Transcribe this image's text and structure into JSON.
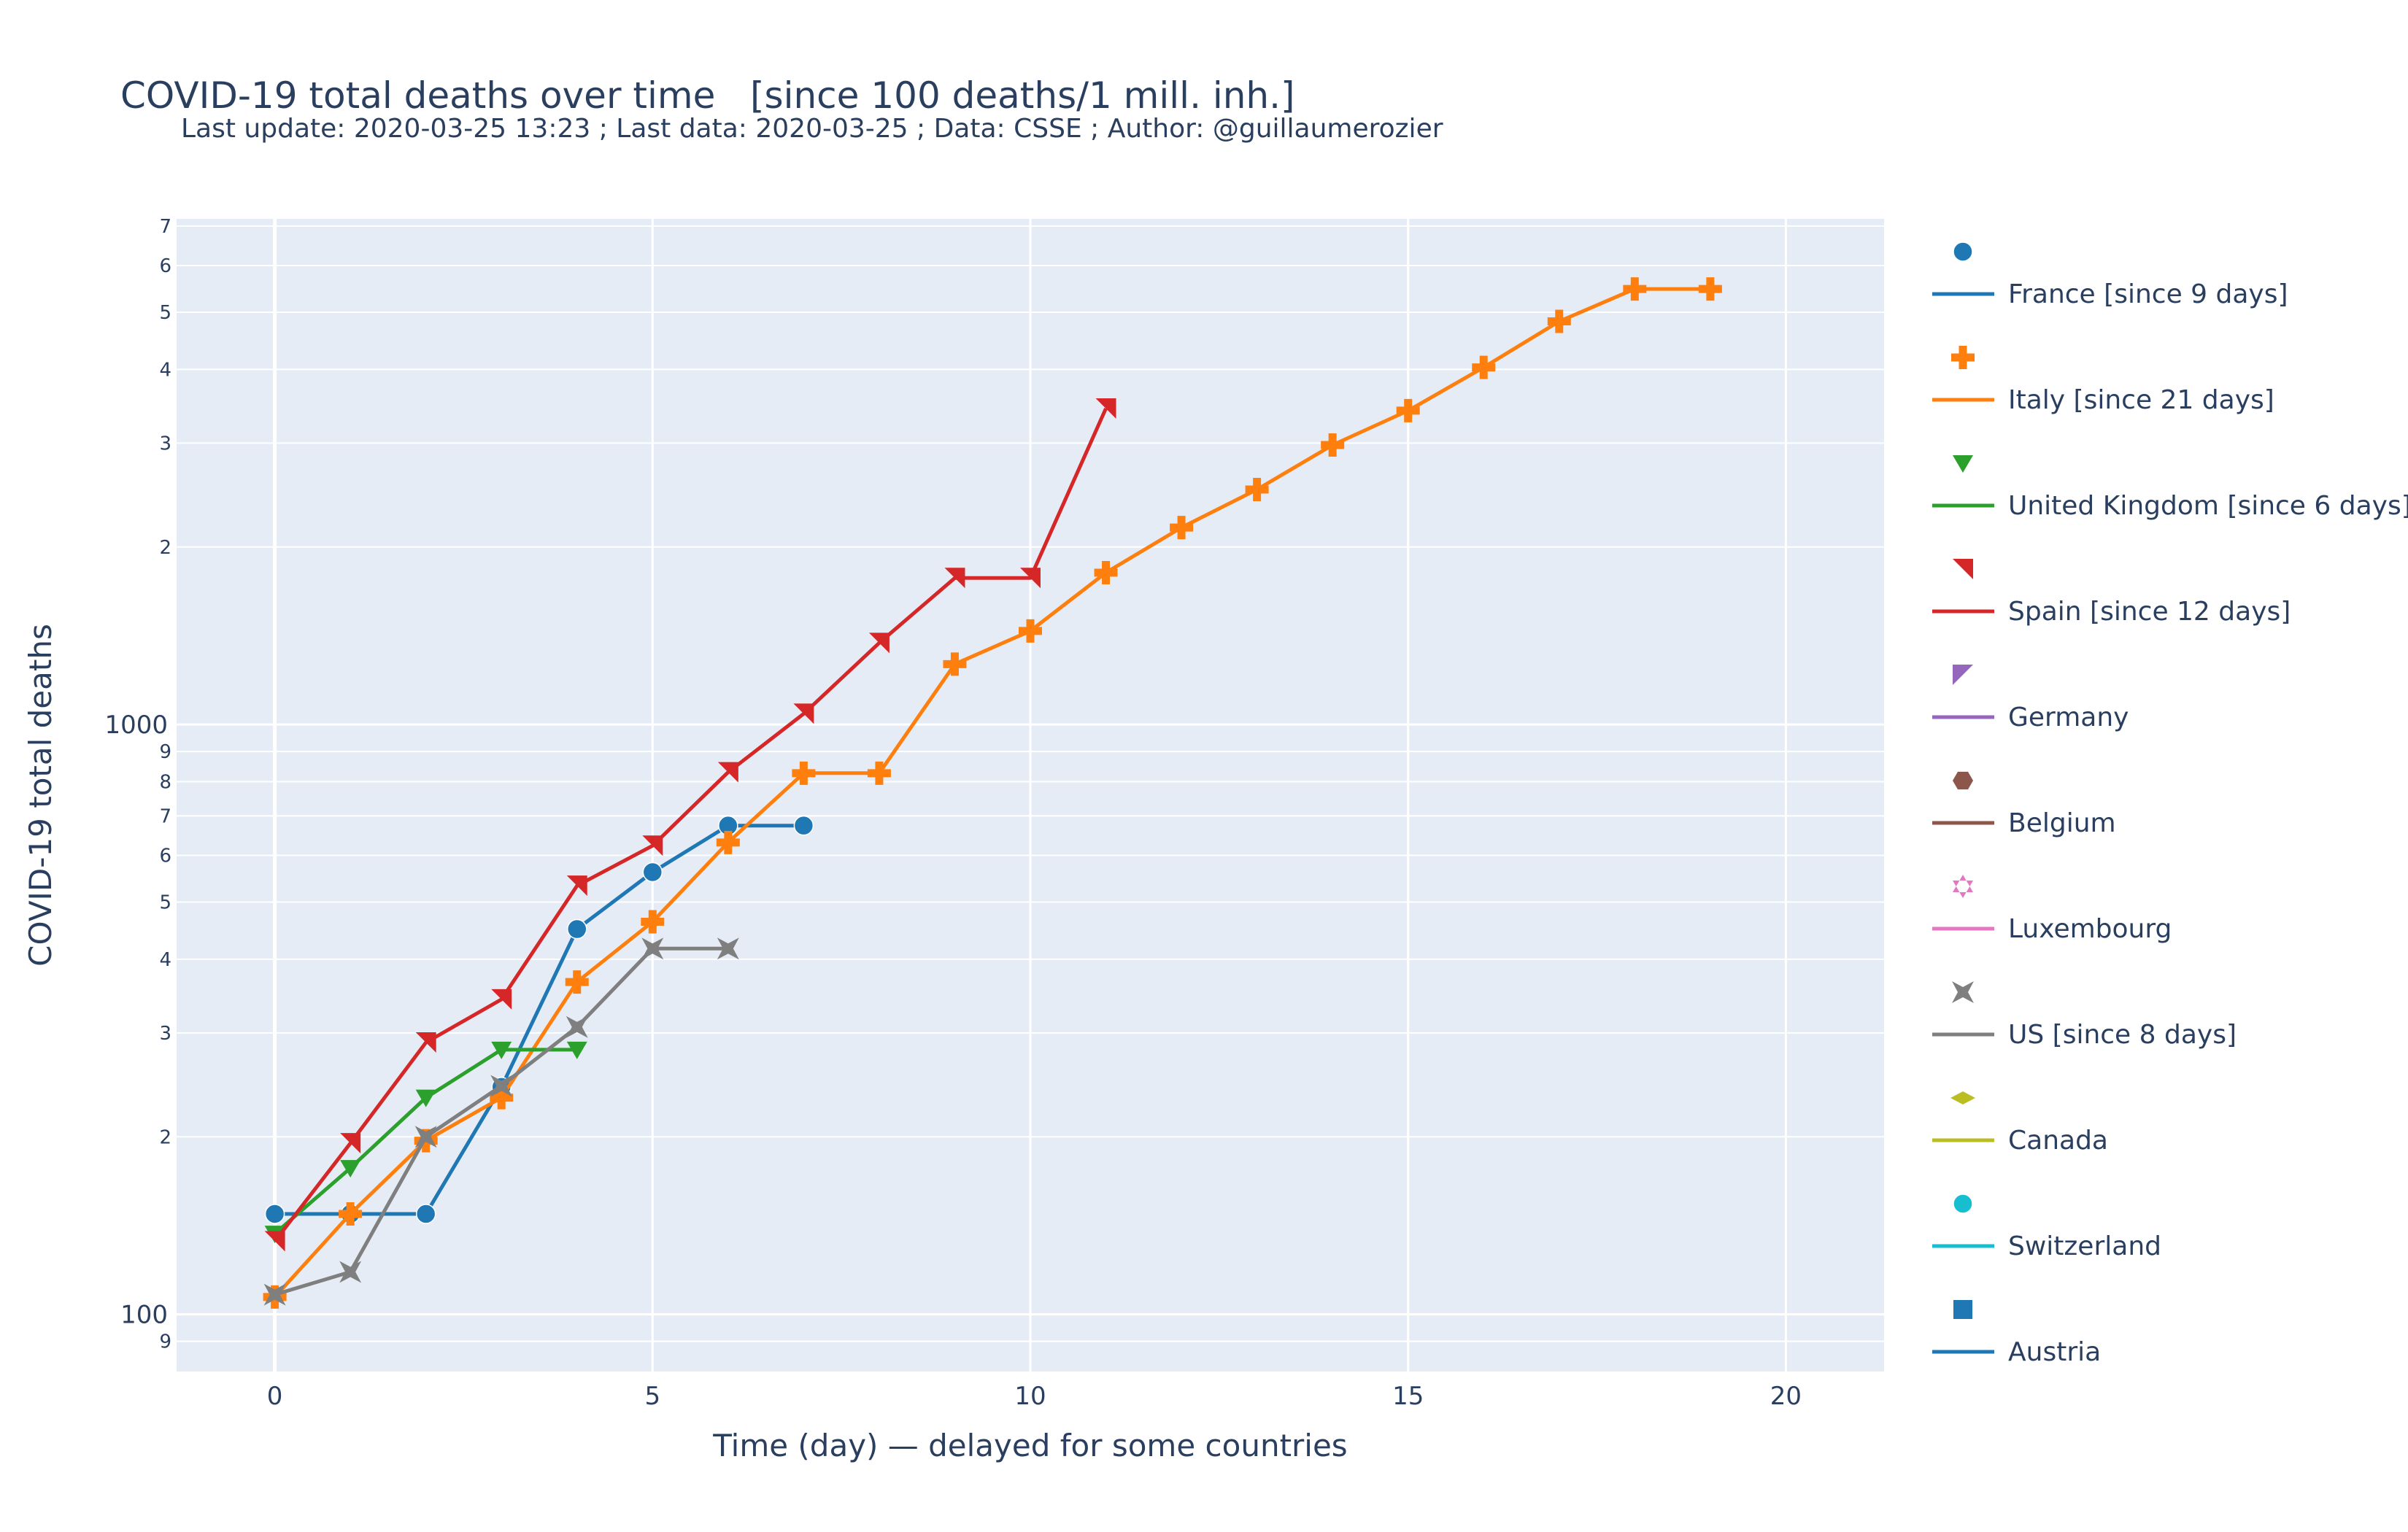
{
  "chart_data": {
    "type": "line",
    "title": "COVID-19 total deaths over time   [since 100 deaths/1 mill. inh.]",
    "subtitle": "Last update: 2020-03-25 13:23 ; Last data: 2020-03-25 ; Data: CSSE ; Author: @guillaumerozier",
    "xlabel": "Time (day) — delayed for some countries",
    "ylabel": "COVID-19 total deaths",
    "y_scale": "log",
    "xlim": [
      -1.3,
      21.3
    ],
    "ylim": [
      80,
      7200
    ],
    "x_ticks": [
      0,
      5,
      10,
      15,
      20
    ],
    "y_major_ticks": [
      {
        "value": 100,
        "label": "100"
      },
      {
        "value": 1000,
        "label": "1000"
      }
    ],
    "y_minor_ticks": [
      {
        "value": 90,
        "label": "9"
      },
      {
        "value": 200,
        "label": "2"
      },
      {
        "value": 300,
        "label": "3"
      },
      {
        "value": 400,
        "label": "4"
      },
      {
        "value": 500,
        "label": "5"
      },
      {
        "value": 600,
        "label": "6"
      },
      {
        "value": 700,
        "label": "7"
      },
      {
        "value": 800,
        "label": "8"
      },
      {
        "value": 900,
        "label": "9"
      },
      {
        "value": 2000,
        "label": "2"
      },
      {
        "value": 3000,
        "label": "3"
      },
      {
        "value": 4000,
        "label": "4"
      },
      {
        "value": 5000,
        "label": "5"
      },
      {
        "value": 6000,
        "label": "6"
      },
      {
        "value": 7000,
        "label": "7"
      }
    ],
    "grid": true,
    "legend_position": "right",
    "series": [
      {
        "name": "France [since 9 days]",
        "color": "#1f77b4",
        "marker": "circle",
        "x": [
          0,
          1,
          2,
          3,
          4,
          5,
          6,
          7
        ],
        "y": [
          148,
          148,
          148,
          243,
          450,
          562,
          674,
          674
        ]
      },
      {
        "name": "Italy [since 21 days]",
        "color": "#ff7f0e",
        "marker": "cross",
        "x": [
          0,
          1,
          2,
          3,
          4,
          5,
          6,
          7,
          8,
          9,
          10,
          11,
          12,
          13,
          14,
          15,
          16,
          17,
          18,
          19
        ],
        "y": [
          107,
          148,
          197,
          233,
          366,
          463,
          631,
          827,
          827,
          1266,
          1441,
          1809,
          2158,
          2503,
          2978,
          3405,
          4032,
          4825,
          5476,
          5476
        ]
      },
      {
        "name": "United Kingdom [since 6 days]",
        "color": "#2ca02c",
        "marker": "triangle-down",
        "x": [
          0,
          1,
          2,
          3,
          4
        ],
        "y": [
          137,
          177,
          233,
          281,
          281
        ]
      },
      {
        "name": "Spain [since 12 days]",
        "color": "#d62728",
        "marker": "triangle-ne",
        "x": [
          0,
          1,
          2,
          3,
          4,
          5,
          6,
          7,
          8,
          9,
          10,
          11
        ],
        "y": [
          133,
          195,
          289,
          342,
          533,
          623,
          830,
          1043,
          1375,
          1772,
          1772,
          3434
        ]
      },
      {
        "name": "Germany",
        "color": "#9467bd",
        "marker": "triangle-sw",
        "x": [],
        "y": []
      },
      {
        "name": "Belgium",
        "color": "#8c564b",
        "marker": "hexagon",
        "x": [],
        "y": []
      },
      {
        "name": "Luxembourg",
        "color": "#e377c2",
        "marker": "star",
        "x": [],
        "y": []
      },
      {
        "name": "US [since 8 days]",
        "color": "#7f7f7f",
        "marker": "hourglass",
        "x": [
          0,
          1,
          2,
          3,
          4,
          5,
          6
        ],
        "y": [
          108,
          118,
          200,
          244,
          307,
          417,
          417
        ]
      },
      {
        "name": "Canada",
        "color": "#bcbd22",
        "marker": "diamond-wide",
        "x": [],
        "y": []
      },
      {
        "name": "Switzerland",
        "color": "#17becf",
        "marker": "circle",
        "x": [],
        "y": []
      },
      {
        "name": "Austria",
        "color": "#1f77b4",
        "marker": "square",
        "x": [],
        "y": []
      }
    ]
  }
}
